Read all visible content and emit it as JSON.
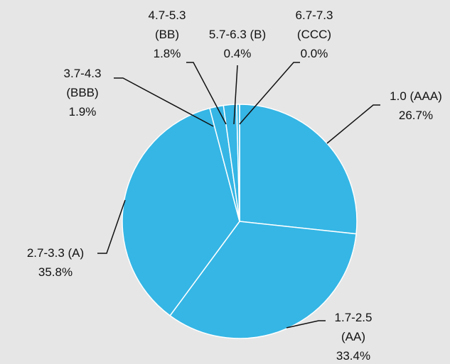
{
  "chart_data": {
    "type": "pie",
    "categories": [
      "1.0 (AAA)",
      "1.7-2.5 (AA)",
      "2.7-3.3 (A)",
      "3.7-4.3 (BBB)",
      "4.7-5.3 (BB)",
      "5.7-6.3 (B)",
      "6.7-7.3 (CCC)"
    ],
    "values": [
      26.7,
      33.4,
      35.8,
      1.9,
      1.8,
      0.4,
      0.0
    ],
    "value_labels": [
      "26.7%",
      "33.4%",
      "35.8%",
      "1.9%",
      "1.8%",
      "0.4%",
      "0.0%"
    ],
    "color": "#35b6e5"
  }
}
